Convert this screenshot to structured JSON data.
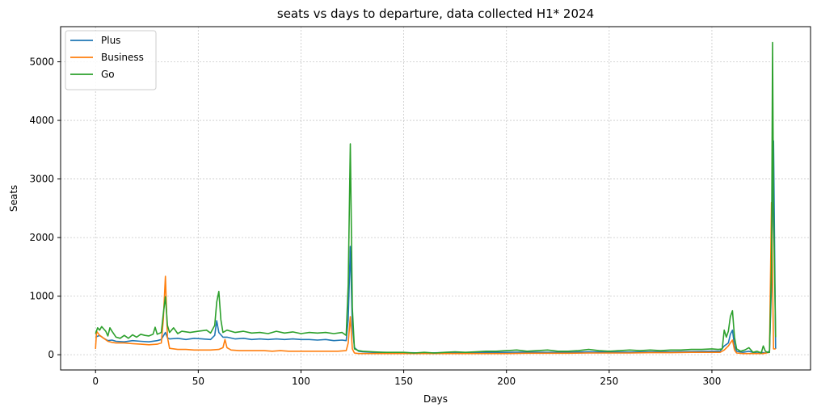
{
  "chart_data": {
    "type": "line",
    "title": "seats vs days to departure, data collected H1* 2024",
    "xlabel": "Days",
    "ylabel": "Seats",
    "xlim": [
      -17,
      348
    ],
    "ylim": [
      -260,
      5600
    ],
    "xticks": [
      0,
      50,
      100,
      150,
      200,
      250,
      300
    ],
    "yticks": [
      0,
      1000,
      2000,
      3000,
      4000,
      5000
    ],
    "grid": true,
    "legend_position": "top-left",
    "series": [
      {
        "name": "Plus",
        "color": "#1f77b4",
        "points": [
          [
            0,
            300
          ],
          [
            2,
            330
          ],
          [
            4,
            280
          ],
          [
            6,
            240
          ],
          [
            8,
            250
          ],
          [
            10,
            230
          ],
          [
            14,
            220
          ],
          [
            18,
            240
          ],
          [
            22,
            230
          ],
          [
            26,
            220
          ],
          [
            30,
            240
          ],
          [
            32,
            260
          ],
          [
            33,
            320
          ],
          [
            34,
            380
          ],
          [
            35,
            290
          ],
          [
            36,
            270
          ],
          [
            40,
            280
          ],
          [
            44,
            260
          ],
          [
            48,
            280
          ],
          [
            52,
            270
          ],
          [
            56,
            260
          ],
          [
            58,
            330
          ],
          [
            59,
            580
          ],
          [
            60,
            380
          ],
          [
            62,
            300
          ],
          [
            64,
            300
          ],
          [
            68,
            270
          ],
          [
            72,
            280
          ],
          [
            76,
            260
          ],
          [
            80,
            270
          ],
          [
            84,
            260
          ],
          [
            88,
            270
          ],
          [
            92,
            260
          ],
          [
            96,
            270
          ],
          [
            100,
            260
          ],
          [
            104,
            260
          ],
          [
            108,
            250
          ],
          [
            112,
            260
          ],
          [
            116,
            240
          ],
          [
            120,
            250
          ],
          [
            122,
            240
          ],
          [
            123,
            600
          ],
          [
            124,
            1850
          ],
          [
            125,
            500
          ],
          [
            126,
            120
          ],
          [
            128,
            60
          ],
          [
            130,
            50
          ],
          [
            135,
            40
          ],
          [
            140,
            40
          ],
          [
            145,
            35
          ],
          [
            150,
            35
          ],
          [
            160,
            30
          ],
          [
            170,
            35
          ],
          [
            180,
            30
          ],
          [
            190,
            40
          ],
          [
            200,
            40
          ],
          [
            210,
            45
          ],
          [
            220,
            40
          ],
          [
            230,
            40
          ],
          [
            240,
            50
          ],
          [
            250,
            45
          ],
          [
            260,
            45
          ],
          [
            270,
            50
          ],
          [
            280,
            50
          ],
          [
            290,
            55
          ],
          [
            300,
            60
          ],
          [
            304,
            60
          ],
          [
            306,
            150
          ],
          [
            308,
            200
          ],
          [
            309,
            350
          ],
          [
            310,
            420
          ],
          [
            311,
            150
          ],
          [
            312,
            60
          ],
          [
            315,
            40
          ],
          [
            318,
            60
          ],
          [
            320,
            40
          ],
          [
            322,
            30
          ],
          [
            324,
            40
          ],
          [
            326,
            30
          ],
          [
            328,
            60
          ],
          [
            329,
            1200
          ],
          [
            330,
            3650
          ],
          [
            331,
            100
          ]
        ]
      },
      {
        "name": "Business",
        "color": "#ff7f0e",
        "points": [
          [
            0,
            100
          ],
          [
            0.5,
            400
          ],
          [
            2,
            330
          ],
          [
            4,
            280
          ],
          [
            6,
            230
          ],
          [
            8,
            210
          ],
          [
            10,
            200
          ],
          [
            14,
            200
          ],
          [
            18,
            190
          ],
          [
            22,
            180
          ],
          [
            26,
            170
          ],
          [
            30,
            180
          ],
          [
            32,
            200
          ],
          [
            33,
            600
          ],
          [
            34,
            1340
          ],
          [
            35,
            300
          ],
          [
            36,
            110
          ],
          [
            40,
            90
          ],
          [
            44,
            90
          ],
          [
            48,
            80
          ],
          [
            52,
            80
          ],
          [
            56,
            80
          ],
          [
            60,
            90
          ],
          [
            62,
            120
          ],
          [
            63,
            260
          ],
          [
            64,
            120
          ],
          [
            66,
            80
          ],
          [
            70,
            70
          ],
          [
            74,
            70
          ],
          [
            78,
            70
          ],
          [
            82,
            70
          ],
          [
            86,
            60
          ],
          [
            90,
            70
          ],
          [
            94,
            60
          ],
          [
            98,
            60
          ],
          [
            102,
            60
          ],
          [
            106,
            60
          ],
          [
            110,
            60
          ],
          [
            114,
            60
          ],
          [
            118,
            60
          ],
          [
            122,
            70
          ],
          [
            123,
            200
          ],
          [
            124,
            650
          ],
          [
            125,
            100
          ],
          [
            126,
            30
          ],
          [
            128,
            20
          ],
          [
            130,
            20
          ],
          [
            140,
            20
          ],
          [
            150,
            20
          ],
          [
            160,
            20
          ],
          [
            170,
            20
          ],
          [
            180,
            20
          ],
          [
            190,
            20
          ],
          [
            200,
            20
          ],
          [
            210,
            25
          ],
          [
            220,
            25
          ],
          [
            230,
            25
          ],
          [
            240,
            30
          ],
          [
            250,
            30
          ],
          [
            260,
            30
          ],
          [
            270,
            35
          ],
          [
            280,
            35
          ],
          [
            290,
            40
          ],
          [
            300,
            40
          ],
          [
            304,
            40
          ],
          [
            306,
            80
          ],
          [
            308,
            150
          ],
          [
            309,
            200
          ],
          [
            310,
            250
          ],
          [
            311,
            80
          ],
          [
            312,
            30
          ],
          [
            315,
            20
          ],
          [
            320,
            20
          ],
          [
            322,
            20
          ],
          [
            325,
            20
          ],
          [
            328,
            40
          ],
          [
            329,
            2600
          ],
          [
            330,
            100
          ],
          [
            331,
            100
          ]
        ]
      },
      {
        "name": "Go",
        "color": "#2ca02c",
        "points": [
          [
            0,
            360
          ],
          [
            1,
            460
          ],
          [
            2,
            420
          ],
          [
            3,
            480
          ],
          [
            5,
            400
          ],
          [
            6,
            320
          ],
          [
            7,
            460
          ],
          [
            8,
            400
          ],
          [
            10,
            300
          ],
          [
            12,
            280
          ],
          [
            14,
            330
          ],
          [
            16,
            280
          ],
          [
            18,
            340
          ],
          [
            20,
            300
          ],
          [
            22,
            350
          ],
          [
            24,
            330
          ],
          [
            26,
            320
          ],
          [
            28,
            350
          ],
          [
            29,
            470
          ],
          [
            30,
            350
          ],
          [
            32,
            380
          ],
          [
            33,
            700
          ],
          [
            34,
            990
          ],
          [
            35,
            500
          ],
          [
            36,
            380
          ],
          [
            38,
            460
          ],
          [
            40,
            360
          ],
          [
            42,
            400
          ],
          [
            46,
            380
          ],
          [
            50,
            400
          ],
          [
            54,
            420
          ],
          [
            56,
            370
          ],
          [
            58,
            500
          ],
          [
            59,
            900
          ],
          [
            60,
            1080
          ],
          [
            61,
            600
          ],
          [
            62,
            380
          ],
          [
            64,
            420
          ],
          [
            68,
            380
          ],
          [
            72,
            400
          ],
          [
            76,
            370
          ],
          [
            80,
            380
          ],
          [
            84,
            360
          ],
          [
            88,
            400
          ],
          [
            92,
            370
          ],
          [
            96,
            390
          ],
          [
            100,
            360
          ],
          [
            104,
            380
          ],
          [
            108,
            370
          ],
          [
            112,
            380
          ],
          [
            116,
            360
          ],
          [
            120,
            380
          ],
          [
            122,
            330
          ],
          [
            123,
            1200
          ],
          [
            124,
            3600
          ],
          [
            125,
            800
          ],
          [
            126,
            100
          ],
          [
            128,
            70
          ],
          [
            130,
            60
          ],
          [
            135,
            50
          ],
          [
            140,
            40
          ],
          [
            145,
            40
          ],
          [
            150,
            40
          ],
          [
            155,
            30
          ],
          [
            160,
            40
          ],
          [
            165,
            30
          ],
          [
            170,
            40
          ],
          [
            175,
            50
          ],
          [
            180,
            40
          ],
          [
            185,
            50
          ],
          [
            190,
            60
          ],
          [
            195,
            60
          ],
          [
            200,
            70
          ],
          [
            205,
            80
          ],
          [
            210,
            60
          ],
          [
            215,
            70
          ],
          [
            220,
            80
          ],
          [
            225,
            60
          ],
          [
            230,
            60
          ],
          [
            235,
            70
          ],
          [
            240,
            90
          ],
          [
            245,
            70
          ],
          [
            250,
            60
          ],
          [
            255,
            70
          ],
          [
            260,
            80
          ],
          [
            265,
            70
          ],
          [
            270,
            80
          ],
          [
            275,
            70
          ],
          [
            280,
            80
          ],
          [
            285,
            80
          ],
          [
            290,
            90
          ],
          [
            295,
            90
          ],
          [
            300,
            100
          ],
          [
            303,
            90
          ],
          [
            305,
            100
          ],
          [
            306,
            420
          ],
          [
            307,
            300
          ],
          [
            308,
            400
          ],
          [
            309,
            650
          ],
          [
            310,
            750
          ],
          [
            311,
            300
          ],
          [
            312,
            100
          ],
          [
            314,
            60
          ],
          [
            316,
            80
          ],
          [
            318,
            120
          ],
          [
            320,
            40
          ],
          [
            322,
            60
          ],
          [
            324,
            30
          ],
          [
            325,
            150
          ],
          [
            326,
            60
          ],
          [
            327,
            40
          ],
          [
            328,
            40
          ],
          [
            329,
            1500
          ],
          [
            329.5,
            5330
          ],
          [
            330,
            2500
          ],
          [
            331,
            300
          ]
        ]
      }
    ]
  }
}
